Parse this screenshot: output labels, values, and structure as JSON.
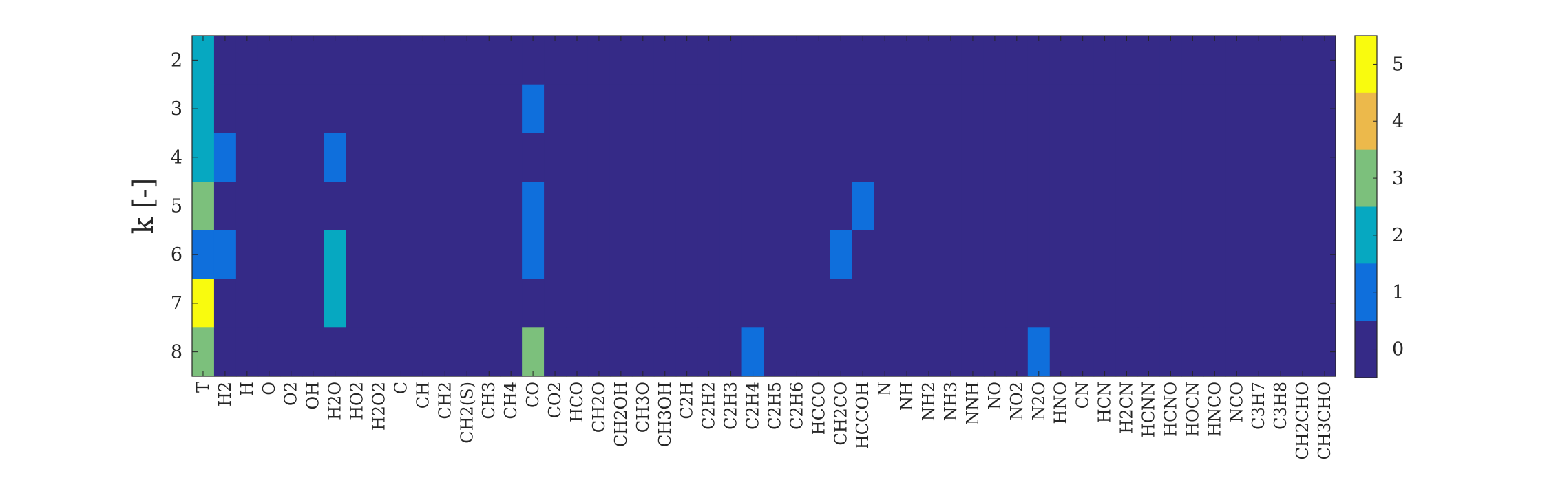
{
  "chart_data": {
    "type": "heatmap",
    "ylabel": "k [-]",
    "x_categories": [
      "T",
      "H2",
      "H",
      "O",
      "O2",
      "OH",
      "H2O",
      "HO2",
      "H2O2",
      "C",
      "CH",
      "CH2",
      "CH2(S)",
      "CH3",
      "CH4",
      "CO",
      "CO2",
      "HCO",
      "CH2O",
      "CH2OH",
      "CH3O",
      "CH3OH",
      "C2H",
      "C2H2",
      "C2H3",
      "C2H4",
      "C2H5",
      "C2H6",
      "HCCO",
      "CH2CO",
      "HCCOH",
      "N",
      "NH",
      "NH2",
      "NH3",
      "NNH",
      "NO",
      "NO2",
      "N2O",
      "HNO",
      "CN",
      "HCN",
      "H2CN",
      "HCNN",
      "HCNO",
      "HOCN",
      "HNCO",
      "NCO",
      "C3H7",
      "C3H8",
      "CH2CHO",
      "CH3CHO"
    ],
    "y_categories": [
      2,
      3,
      4,
      5,
      6,
      7,
      8
    ],
    "nonzero_cells": [
      {
        "x": "T",
        "y": 2,
        "value": 2
      },
      {
        "x": "T",
        "y": 3,
        "value": 2
      },
      {
        "x": "T",
        "y": 4,
        "value": 2
      },
      {
        "x": "T",
        "y": 5,
        "value": 3
      },
      {
        "x": "T",
        "y": 6,
        "value": 1
      },
      {
        "x": "T",
        "y": 7,
        "value": 5
      },
      {
        "x": "T",
        "y": 8,
        "value": 3
      },
      {
        "x": "H2",
        "y": 4,
        "value": 1
      },
      {
        "x": "H2",
        "y": 6,
        "value": 1
      },
      {
        "x": "H2O",
        "y": 4,
        "value": 1
      },
      {
        "x": "H2O",
        "y": 6,
        "value": 2
      },
      {
        "x": "H2O",
        "y": 7,
        "value": 2
      },
      {
        "x": "CO",
        "y": 3,
        "value": 1
      },
      {
        "x": "CO",
        "y": 5,
        "value": 1
      },
      {
        "x": "CO",
        "y": 6,
        "value": 1
      },
      {
        "x": "CO",
        "y": 8,
        "value": 3
      },
      {
        "x": "C2H4",
        "y": 8,
        "value": 1
      },
      {
        "x": "CH2CO",
        "y": 6,
        "value": 1
      },
      {
        "x": "HCCOH",
        "y": 5,
        "value": 1
      },
      {
        "x": "N2O",
        "y": 8,
        "value": 1
      }
    ],
    "default_value": 0,
    "colorbar": {
      "ticks": [
        0,
        1,
        2,
        3,
        4,
        5
      ],
      "range": [
        -0.5,
        5.5
      ],
      "colors": [
        "#352a87",
        "#0f6fdc",
        "#06a8c1",
        "#7cc07c",
        "#ecb94b",
        "#f9fb0e"
      ]
    },
    "grid": false,
    "legend": "colorbar-right"
  }
}
